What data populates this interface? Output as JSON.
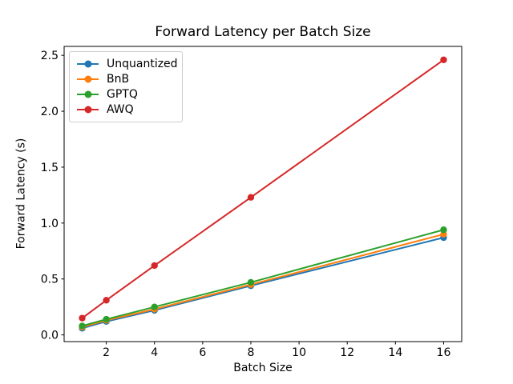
{
  "chart_data": {
    "type": "line",
    "title": "Forward Latency per Batch Size",
    "xlabel": "Batch Size",
    "ylabel": "Forward Latency (s)",
    "x": [
      1,
      2,
      4,
      8,
      16
    ],
    "series": [
      {
        "name": "Unquantized",
        "color": "#1f77b4",
        "values": [
          0.06,
          0.12,
          0.22,
          0.44,
          0.87
        ]
      },
      {
        "name": "BnB",
        "color": "#ff7f0e",
        "values": [
          0.07,
          0.13,
          0.23,
          0.45,
          0.9
        ]
      },
      {
        "name": "GPTQ",
        "color": "#2ca02c",
        "values": [
          0.08,
          0.14,
          0.25,
          0.47,
          0.94
        ]
      },
      {
        "name": "AWQ",
        "color": "#d62728",
        "values": [
          0.15,
          0.31,
          0.62,
          1.23,
          2.46
        ]
      }
    ],
    "xlim": [
      0.25,
      16.75
    ],
    "ylim": [
      -0.06,
      2.58
    ],
    "xticks": [
      "2",
      "4",
      "6",
      "8",
      "10",
      "12",
      "14",
      "16"
    ],
    "yticks": [
      "0.0",
      "0.5",
      "1.0",
      "1.5",
      "2.0",
      "2.5"
    ],
    "grid": false,
    "legend_position": "upper left",
    "marker": "circle",
    "axis_color": "#000000"
  }
}
